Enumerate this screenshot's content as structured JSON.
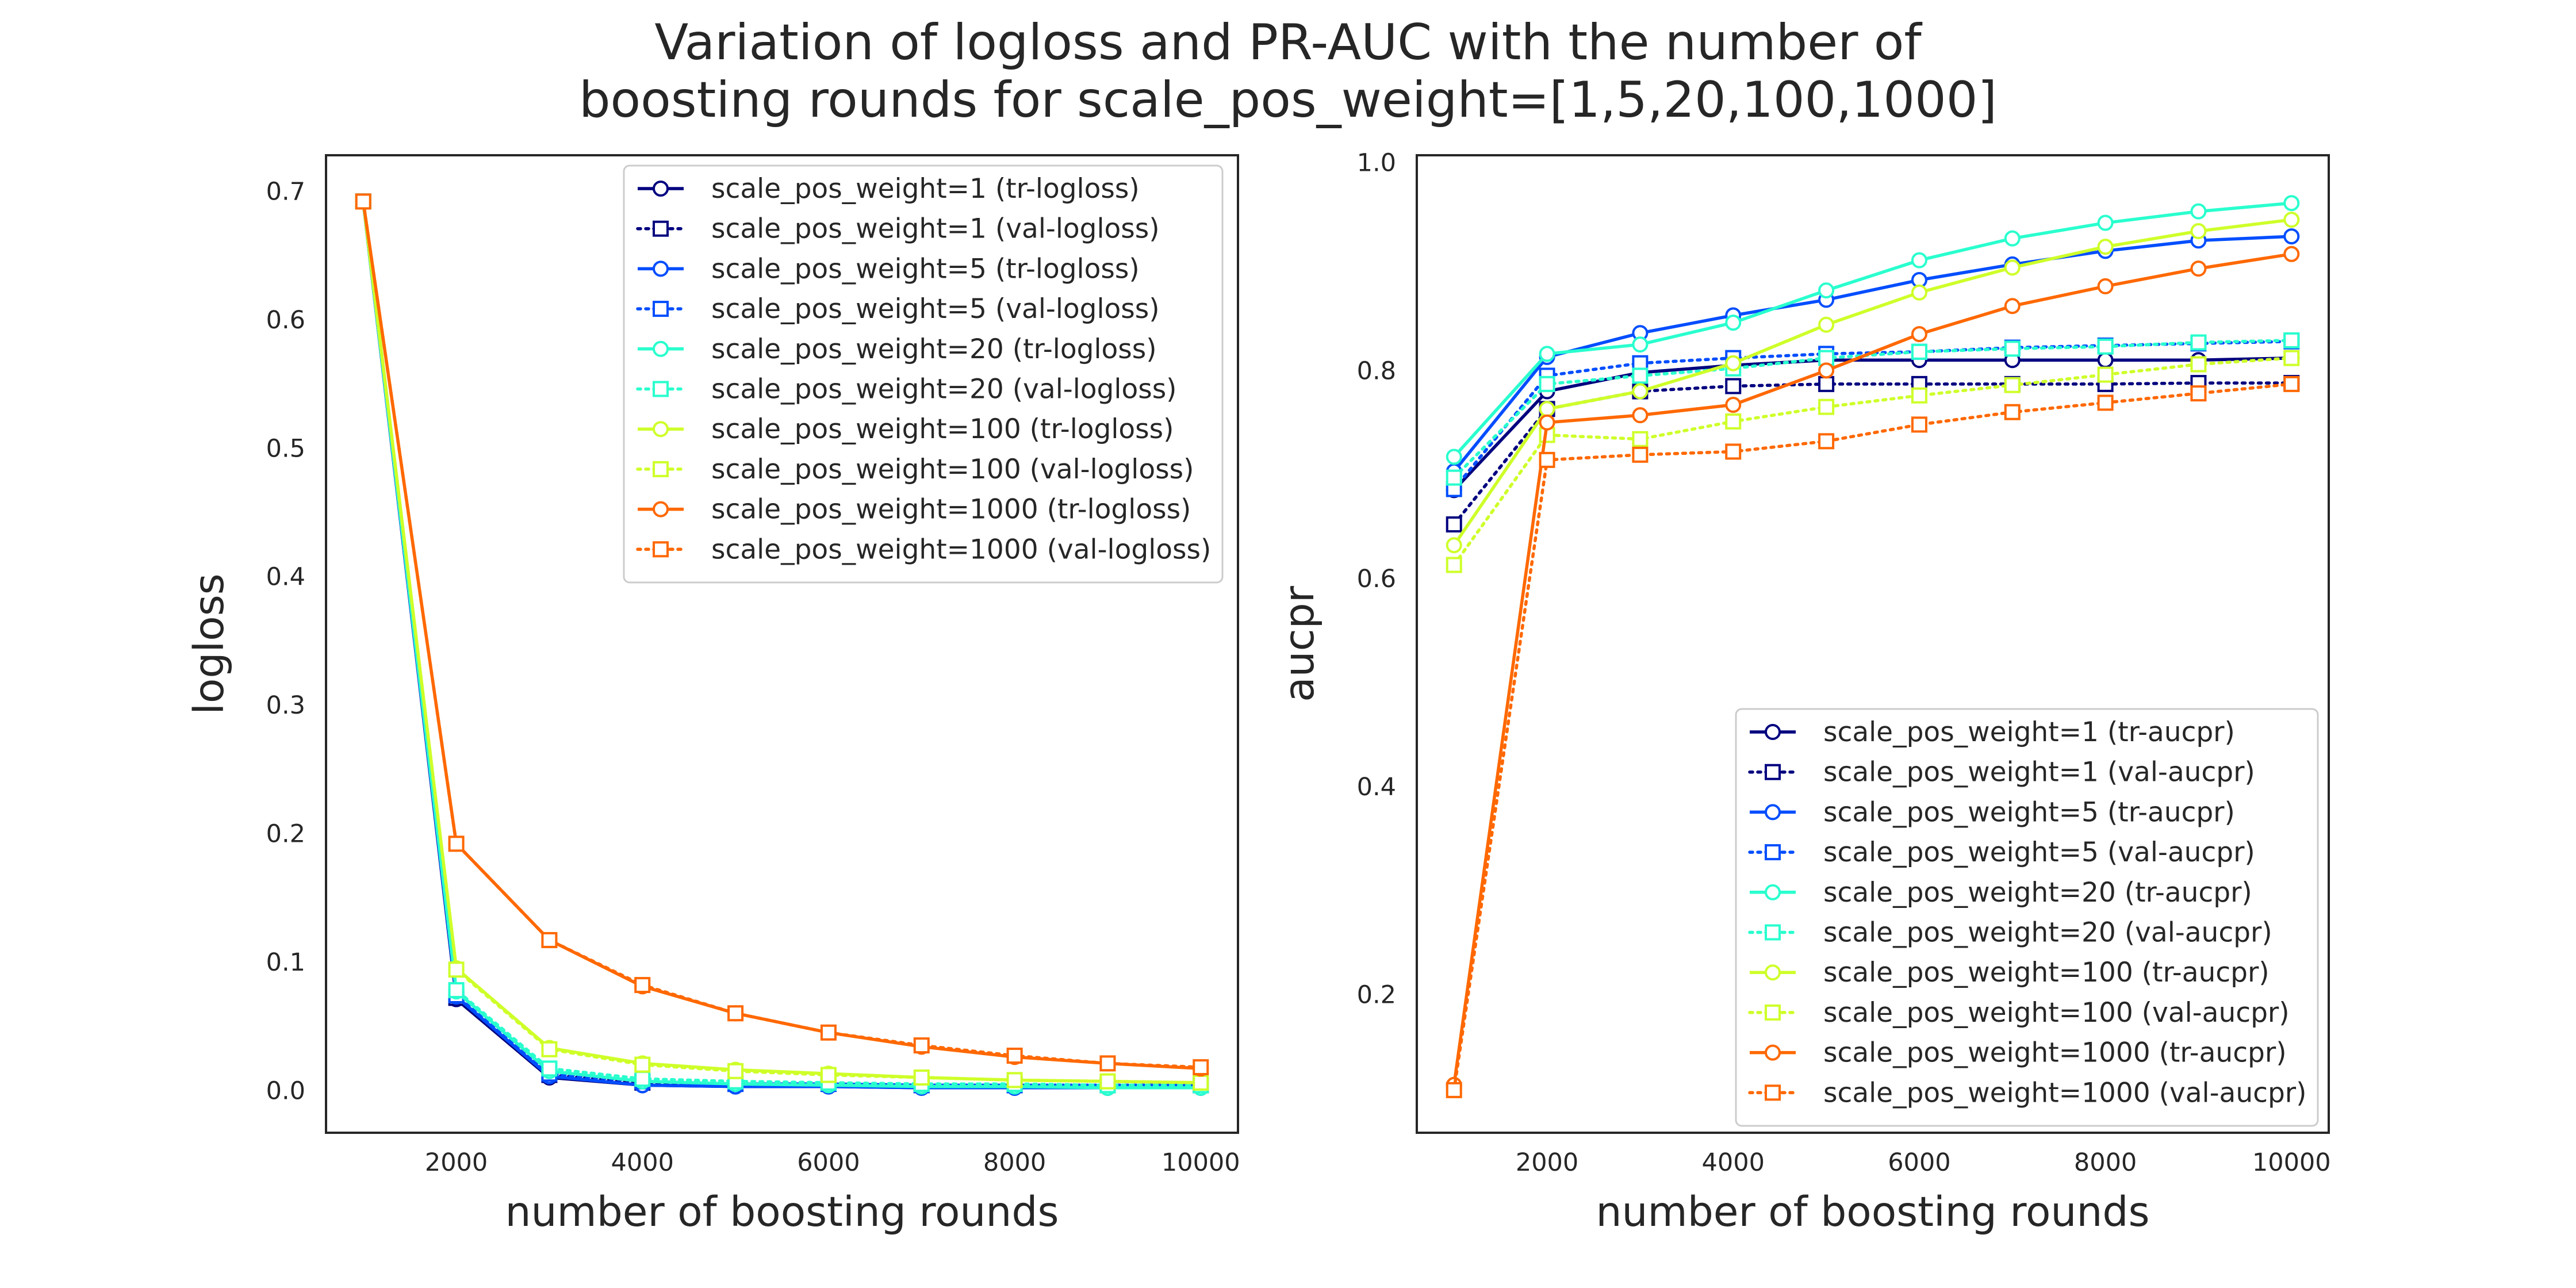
{
  "figure": {
    "suptitle_line1": "Variation of logloss and PR-AUC with the number of",
    "suptitle_line2": "boosting rounds for scale_pos_weight=[1,5,20,100,1000]"
  },
  "chart_data": [
    {
      "type": "line",
      "xlabel": "number of boosting rounds",
      "ylabel": "logloss",
      "xlim": [
        600,
        10400
      ],
      "ylim": [
        -0.033,
        0.728
      ],
      "xticks": [
        2000,
        4000,
        6000,
        8000,
        10000
      ],
      "yticks": [
        0.0,
        0.1,
        0.2,
        0.3,
        0.4,
        0.5,
        0.6,
        0.7
      ],
      "grid": false,
      "legend_position": "upper right",
      "x": [
        1000,
        2000,
        3000,
        4000,
        5000,
        6000,
        7000,
        8000,
        9000,
        10000
      ],
      "series": [
        {
          "name": "scale_pos_weight=1 (tr-logloss)",
          "color": "#00007f",
          "style": "solid",
          "marker": "circle",
          "values": [
            0.692,
            0.071,
            0.01,
            0.004,
            0.003,
            0.003,
            0.002,
            0.002,
            0.002,
            0.002
          ]
        },
        {
          "name": "scale_pos_weight=1 (val-logloss)",
          "color": "#00007f",
          "style": "dotted",
          "marker": "square",
          "values": [
            0.692,
            0.072,
            0.012,
            0.006,
            0.005,
            0.005,
            0.004,
            0.004,
            0.004,
            0.004
          ]
        },
        {
          "name": "scale_pos_weight=5 (tr-logloss)",
          "color": "#004dff",
          "style": "solid",
          "marker": "circle",
          "values": [
            0.692,
            0.073,
            0.011,
            0.004,
            0.003,
            0.003,
            0.002,
            0.002,
            0.002,
            0.002
          ]
        },
        {
          "name": "scale_pos_weight=5 (val-logloss)",
          "color": "#004dff",
          "style": "dotted",
          "marker": "square",
          "values": [
            0.692,
            0.074,
            0.013,
            0.007,
            0.005,
            0.005,
            0.004,
            0.004,
            0.004,
            0.004
          ]
        },
        {
          "name": "scale_pos_weight=20 (tr-logloss)",
          "color": "#29ffce",
          "style": "solid",
          "marker": "circle",
          "values": [
            0.692,
            0.077,
            0.015,
            0.007,
            0.005,
            0.004,
            0.003,
            0.003,
            0.002,
            0.002
          ]
        },
        {
          "name": "scale_pos_weight=20 (val-logloss)",
          "color": "#29ffce",
          "style": "dotted",
          "marker": "square",
          "values": [
            0.692,
            0.078,
            0.017,
            0.009,
            0.007,
            0.006,
            0.005,
            0.005,
            0.004,
            0.004
          ]
        },
        {
          "name": "scale_pos_weight=100 (tr-logloss)",
          "color": "#ceff29",
          "style": "solid",
          "marker": "circle",
          "values": [
            0.692,
            0.095,
            0.033,
            0.021,
            0.016,
            0.013,
            0.01,
            0.008,
            0.007,
            0.006
          ]
        },
        {
          "name": "scale_pos_weight=100 (val-logloss)",
          "color": "#ceff29",
          "style": "dotted",
          "marker": "square",
          "values": [
            0.692,
            0.094,
            0.032,
            0.02,
            0.015,
            0.012,
            0.01,
            0.008,
            0.007,
            0.006
          ]
        },
        {
          "name": "scale_pos_weight=1000 (tr-logloss)",
          "color": "#ff6800",
          "style": "solid",
          "marker": "circle",
          "values": [
            0.692,
            0.192,
            0.117,
            0.081,
            0.06,
            0.045,
            0.034,
            0.026,
            0.021,
            0.017
          ]
        },
        {
          "name": "scale_pos_weight=1000 (val-logloss)",
          "color": "#ff6800",
          "style": "dotted",
          "marker": "square",
          "values": [
            0.692,
            0.192,
            0.117,
            0.082,
            0.06,
            0.045,
            0.035,
            0.027,
            0.021,
            0.018
          ]
        }
      ]
    },
    {
      "type": "line",
      "xlabel": "number of boosting rounds",
      "ylabel": "aucpr",
      "xlim": [
        600,
        10400
      ],
      "ylim": [
        0.067,
        1.007
      ],
      "xticks": [
        2000,
        4000,
        6000,
        8000,
        10000
      ],
      "yticks": [
        0.2,
        0.4,
        0.6,
        0.8,
        1.0
      ],
      "grid": false,
      "legend_position": "lower right",
      "x": [
        1000,
        2000,
        3000,
        4000,
        5000,
        6000,
        7000,
        8000,
        9000,
        10000
      ],
      "series": [
        {
          "name": "scale_pos_weight=1 (tr-aucpr)",
          "color": "#00007f",
          "style": "solid",
          "marker": "circle",
          "values": [
            0.685,
            0.78,
            0.798,
            0.805,
            0.81,
            0.81,
            0.81,
            0.81,
            0.81,
            0.812
          ]
        },
        {
          "name": "scale_pos_weight=1 (val-aucpr)",
          "color": "#00007f",
          "style": "dotted",
          "marker": "square",
          "values": [
            0.652,
            0.763,
            0.78,
            0.785,
            0.787,
            0.787,
            0.787,
            0.787,
            0.788,
            0.788
          ]
        },
        {
          "name": "scale_pos_weight=5 (tr-aucpr)",
          "color": "#004dff",
          "style": "solid",
          "marker": "circle",
          "values": [
            0.703,
            0.813,
            0.836,
            0.853,
            0.868,
            0.887,
            0.902,
            0.915,
            0.925,
            0.929
          ]
        },
        {
          "name": "scale_pos_weight=5 (val-aucpr)",
          "color": "#004dff",
          "style": "dotted",
          "marker": "square",
          "values": [
            0.686,
            0.795,
            0.807,
            0.812,
            0.816,
            0.818,
            0.822,
            0.824,
            0.826,
            0.828
          ]
        },
        {
          "name": "scale_pos_weight=20 (tr-aucpr)",
          "color": "#29ffce",
          "style": "solid",
          "marker": "circle",
          "values": [
            0.717,
            0.816,
            0.825,
            0.846,
            0.877,
            0.906,
            0.927,
            0.942,
            0.953,
            0.961
          ]
        },
        {
          "name": "scale_pos_weight=20 (val-aucpr)",
          "color": "#29ffce",
          "style": "dotted",
          "marker": "square",
          "values": [
            0.697,
            0.787,
            0.795,
            0.802,
            0.812,
            0.818,
            0.821,
            0.823,
            0.827,
            0.829
          ]
        },
        {
          "name": "scale_pos_weight=100 (tr-aucpr)",
          "color": "#ceff29",
          "style": "solid",
          "marker": "circle",
          "values": [
            0.632,
            0.763,
            0.78,
            0.807,
            0.844,
            0.875,
            0.899,
            0.919,
            0.934,
            0.945
          ]
        },
        {
          "name": "scale_pos_weight=100 (val-aucpr)",
          "color": "#ceff29",
          "style": "dotted",
          "marker": "square",
          "values": [
            0.613,
            0.738,
            0.734,
            0.751,
            0.765,
            0.776,
            0.786,
            0.796,
            0.806,
            0.812
          ]
        },
        {
          "name": "scale_pos_weight=1000 (tr-aucpr)",
          "color": "#ff6800",
          "style": "solid",
          "marker": "circle",
          "values": [
            0.113,
            0.75,
            0.757,
            0.767,
            0.8,
            0.835,
            0.862,
            0.881,
            0.898,
            0.912
          ]
        },
        {
          "name": "scale_pos_weight=1000 (val-aucpr)",
          "color": "#ff6800",
          "style": "dotted",
          "marker": "square",
          "values": [
            0.108,
            0.714,
            0.719,
            0.722,
            0.732,
            0.748,
            0.76,
            0.769,
            0.778,
            0.787
          ]
        }
      ]
    }
  ]
}
